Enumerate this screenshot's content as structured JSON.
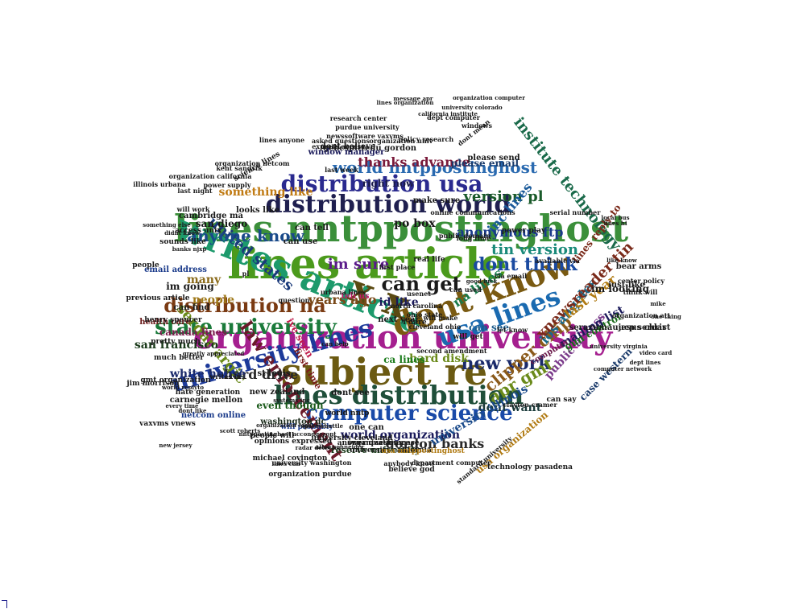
{
  "words": [
    {
      "text": "lines article",
      "color": "#4b9a1c"
    },
    {
      "text": "organization university",
      "color": "#a51f8f"
    },
    {
      "text": "lines nntppostinghost",
      "color": "#3b8f3a"
    },
    {
      "text": "writes article",
      "color": "#1d9a6c"
    },
    {
      "text": "subject re",
      "color": "#6b5a12"
    },
    {
      "text": "distribution world",
      "color": "#1f1f4f"
    },
    {
      "text": "x x",
      "color": "#5a4a12"
    },
    {
      "text": "dont know",
      "color": "#7a5a12"
    },
    {
      "text": "distribution usa",
      "color": "#2a2a8f"
    },
    {
      "text": "usa lines",
      "color": "#1a6ab0"
    },
    {
      "text": "lines distribution",
      "color": "#1f4f3a"
    },
    {
      "text": "university lines",
      "color": "#1d3a9a"
    },
    {
      "text": "state university",
      "color": "#1a7a3a"
    },
    {
      "text": "computer science",
      "color": "#1a4aa8"
    },
    {
      "text": "law enforcement",
      "color": "#6b1a2a"
    },
    {
      "text": "can get",
      "color": "#1a1a1a"
    },
    {
      "text": "new york",
      "color": "#1a2a6a"
    },
    {
      "text": "dont think",
      "color": "#1a4aa0"
    },
    {
      "text": "distribution na",
      "color": "#7a3a12"
    },
    {
      "text": "world nntppostinghost",
      "color": "#2a6ab0"
    },
    {
      "text": "apr gmt",
      "color": "#6a8a1a"
    },
    {
      "text": "clipper chip",
      "color": "#8a5a1a"
    },
    {
      "text": "los angeles",
      "color": "#1a6a8a"
    },
    {
      "text": "united states",
      "color": "#1a3a7a"
    },
    {
      "text": "anyone know",
      "color": "#1a4a8a"
    },
    {
      "text": "im sure",
      "color": "#5a1a8a"
    },
    {
      "text": "tin version",
      "color": "#1a8a7a"
    },
    {
      "text": "xnewsreader tin",
      "color": "#7a2a1a"
    },
    {
      "text": "version pl",
      "color": "#1a5a2a"
    },
    {
      "text": "serdar argic",
      "color": "#6a8a1a"
    },
    {
      "text": "inc lines",
      "color": "#1a5a9a"
    },
    {
      "text": "last year",
      "color": "#b07a12"
    },
    {
      "text": "gordon banks",
      "color": "#2a2a2a"
    },
    {
      "text": "thanks advance",
      "color": "#7a1a3a"
    },
    {
      "text": "anonymous ftp",
      "color": "#1a3a8a"
    },
    {
      "text": "hard drive",
      "color": "#2a2a2a"
    },
    {
      "text": "years ago",
      "color": "#7a4a1a"
    },
    {
      "text": "institute technology",
      "color": "#1a6a4a"
    },
    {
      "text": "na lines",
      "color": "#1a7a4a"
    },
    {
      "text": "san francisco",
      "color": "#1a3a1a"
    },
    {
      "text": "world organization",
      "color": "#1a1a5a"
    },
    {
      "text": "public access",
      "color": "#7a3a8a"
    },
    {
      "text": "dont want",
      "color": "#1a3a3a"
    },
    {
      "text": "mailing list",
      "color": "#1a1a5a"
    },
    {
      "text": "white house",
      "color": "#1a2a6a"
    },
    {
      "text": "something like",
      "color": "#c07a12"
    },
    {
      "text": "po box",
      "color": "#1a1a1a"
    },
    {
      "text": "can see",
      "color": "#1a5a8a"
    },
    {
      "text": "gun control",
      "color": "#1a6a1a"
    },
    {
      "text": "case western",
      "color": "#1a3a6a"
    },
    {
      "text": "canada lines",
      "color": "#7a1a4a"
    },
    {
      "text": "reserve university",
      "color": "#1a3a1a"
    },
    {
      "text": "hard disk",
      "color": "#6a8a1a"
    },
    {
      "text": "id like",
      "color": "#1a1a5a"
    },
    {
      "text": "right now",
      "color": "#1a1a4a"
    },
    {
      "text": "university illinois",
      "color": "#1a4a8a"
    },
    {
      "text": "lines reply-to",
      "color": "#7a2a1a"
    },
    {
      "text": "im going",
      "color": "#1a1a1a"
    },
    {
      "text": "im looking",
      "color": "#1a1a1a"
    },
    {
      "text": "people",
      "color": "#a07a1a"
    },
    {
      "text": "many",
      "color": "#8a6a1a"
    },
    {
      "text": "even though",
      "color": "#1a5a1a"
    },
    {
      "text": "usa organization",
      "color": "#b07a12"
    },
    {
      "text": "dont believe",
      "color": "#1a1a1a"
    },
    {
      "text": "please email",
      "color": "#1a3a6a"
    },
    {
      "text": "ca lines",
      "color": "#1a7a1a"
    },
    {
      "text": "just like",
      "color": "#1a1a1a"
    },
    {
      "text": "serazumauucp serdar",
      "color": "#1a1a1a"
    },
    {
      "text": "washington dc",
      "color": "#1a2a1a"
    },
    {
      "text": "san diego",
      "color": "#1a1a1a"
    },
    {
      "text": "computer",
      "color": "#6a1a4a"
    },
    {
      "text": "can find",
      "color": "#1a1a1a"
    },
    {
      "text": "please send",
      "color": "#1a1a1a"
    },
    {
      "text": "health care",
      "color": "#6a1a1a"
    },
    {
      "text": "make sure",
      "color": "#1a1a1a"
    },
    {
      "text": "gebcspittedu gordon",
      "color": "#1a1a1a"
    },
    {
      "text": "window manager",
      "color": "#1a1a5a"
    },
    {
      "text": "dont see",
      "color": "#1a1a1a"
    },
    {
      "text": "can use",
      "color": "#1a1a1a"
    },
    {
      "text": "can tell",
      "color": "#1a1a1a"
    },
    {
      "text": "one can",
      "color": "#1a1a1a"
    },
    {
      "text": "email address",
      "color": "#1a3a8a"
    },
    {
      "text": "looks like",
      "color": "#1a1a1a"
    },
    {
      "text": "cambridge ma",
      "color": "#1a1a1a"
    },
    {
      "text": "first time",
      "color": "#7a1a1a"
    },
    {
      "text": "ive seen",
      "color": "#c01a4a"
    },
    {
      "text": "st louis",
      "color": "#1a1a1a"
    },
    {
      "text": "new zealand",
      "color": "#1a1a1a"
    },
    {
      "text": "carnegie mellon",
      "color": "#1a1a1a"
    },
    {
      "text": "netcom online",
      "color": "#1a3a8a"
    },
    {
      "text": "previous article",
      "color": "#1a1a1a"
    },
    {
      "text": "henry spencer",
      "color": "#1a1a1a"
    },
    {
      "text": "pretty much",
      "color": "#1a1a1a"
    },
    {
      "text": "much better",
      "color": "#1a1a1a"
    },
    {
      "text": "access unix",
      "color": "#1a1a1a"
    },
    {
      "text": "sounds like",
      "color": "#1a1a1a"
    },
    {
      "text": "people will",
      "color": "#1a1a1a"
    },
    {
      "text": "will probably",
      "color": "#1a3a8a"
    },
    {
      "text": "opinions expressed",
      "color": "#1a1a1a"
    },
    {
      "text": "university cleveland",
      "color": "#1a1a1a"
    },
    {
      "text": "answer question",
      "color": "#1a1a1a"
    },
    {
      "text": "organization case",
      "color": "#1a1a1a"
    },
    {
      "text": "university california",
      "color": "#1a1a1a"
    },
    {
      "text": "usa nntppostinghost",
      "color": "#b07a12"
    },
    {
      "text": "michael covington",
      "color": "#1a1a1a"
    },
    {
      "text": "organization purdue",
      "color": "#1a1a1a"
    },
    {
      "text": "believe god",
      "color": "#1a1a1a"
    },
    {
      "text": "anybody know",
      "color": "#1a1a1a"
    },
    {
      "text": "department computer",
      "color": "#1a1a1a"
    },
    {
      "text": "technology pasadena",
      "color": "#1a1a1a"
    },
    {
      "text": "university washington",
      "color": "#1a1a1a"
    },
    {
      "text": "newssoftware vaxvms",
      "color": "#1a1a1a"
    },
    {
      "text": "policy research",
      "color": "#1a1a1a"
    },
    {
      "text": "purdue university",
      "color": "#1a1a1a"
    },
    {
      "text": "jesus christ",
      "color": "#1a1a1a"
    },
    {
      "text": "bear arms",
      "color": "#1a1a1a"
    },
    {
      "text": "serial number",
      "color": "#1a1a1a"
    },
    {
      "text": "power play",
      "color": "#1a1a1a"
    },
    {
      "text": "organization att",
      "color": "#1a1a1a"
    },
    {
      "text": "center policy",
      "color": "#1a1a1a"
    },
    {
      "text": "let know",
      "color": "#1a1a1a"
    },
    {
      "text": "via email",
      "color": "#1a1a1a"
    },
    {
      "text": "can help",
      "color": "#1a1a1a"
    },
    {
      "text": "good luck",
      "color": "#1a1a1a"
    },
    {
      "text": "tell us",
      "color": "#c01a6a"
    },
    {
      "text": "i dare",
      "color": "#1a1a1a"
    },
    {
      "text": "next year",
      "color": "#1a1a1a"
    },
    {
      "text": "urbana lines",
      "color": "#1a1a1a"
    },
    {
      "text": "vaxvms vnews",
      "color": "#1a1a1a"
    },
    {
      "text": "gmt organization",
      "color": "#1a1a1a"
    },
    {
      "text": "hate generation",
      "color": "#1a1a1a"
    },
    {
      "text": "jim morrison",
      "color": "#1a1a1a"
    },
    {
      "text": "every time",
      "color": "#1a1a1a"
    },
    {
      "text": "can say",
      "color": "#1a1a1a"
    },
    {
      "text": "will get",
      "color": "#1a1a1a"
    },
    {
      "text": "ohio state",
      "color": "#1a1a1a"
    },
    {
      "text": "real life",
      "color": "#1a1a1a"
    },
    {
      "text": "usenet",
      "color": "#1a1a1a"
    },
    {
      "text": "will make",
      "color": "#1a1a1a"
    },
    {
      "text": "organization univ",
      "color": "#1a1a1a"
    },
    {
      "text": "asked questions",
      "color": "#1a1a1a"
    },
    {
      "text": "research center",
      "color": "#1a1a1a"
    },
    {
      "text": "california institute",
      "color": "#1a1a1a"
    },
    {
      "text": "university colorado",
      "color": "#1a1a1a"
    },
    {
      "text": "dept computer",
      "color": "#1a1a1a"
    },
    {
      "text": "windows",
      "color": "#1a1a1a"
    },
    {
      "text": "space shuttle",
      "color": "#1a1a1a"
    },
    {
      "text": "radar detector",
      "color": "#1a1a1a"
    },
    {
      "text": "allan schneider",
      "color": "#1a1a1a"
    },
    {
      "text": "world nntp",
      "color": "#1a1a1a"
    },
    {
      "text": "pl",
      "color": "#1a1a1a"
    },
    {
      "text": "people",
      "color": "#1a1a1a"
    },
    {
      "text": "will work",
      "color": "#1a1a1a"
    },
    {
      "text": "last night",
      "color": "#1a1a1a"
    },
    {
      "text": "illinois urbana",
      "color": "#1a1a1a"
    },
    {
      "text": "organization california",
      "color": "#1a1a1a"
    },
    {
      "text": "power supply",
      "color": "#1a1a1a"
    },
    {
      "text": "kent sandvik",
      "color": "#1a1a1a"
    },
    {
      "text": "lines anyone",
      "color": "#1a1a1a"
    },
    {
      "text": "organization netcom",
      "color": "#1a1a1a"
    },
    {
      "text": "online communications",
      "color": "#1a1a1a"
    },
    {
      "text": "north carolina",
      "color": "#1a1a1a"
    },
    {
      "text": "can used",
      "color": "#1a1a1a"
    },
    {
      "text": "local bus",
      "color": "#1a1a1a"
    },
    {
      "text": "think will",
      "color": "#1a1a1a"
    },
    {
      "text": "video card",
      "color": "#1a1a1a"
    },
    {
      "text": "dept lines",
      "color": "#1a1a1a"
    },
    {
      "text": "university virginia",
      "color": "#1a1a1a"
    },
    {
      "text": "computer network",
      "color": "#1a1a1a"
    },
    {
      "text": "available via",
      "color": "#1a1a1a"
    },
    {
      "text": "public domain",
      "color": "#1a1a1a"
    },
    {
      "text": "science lines",
      "color": "#1a1a1a"
    },
    {
      "text": "express access",
      "color": "#1a1a1a"
    },
    {
      "text": "last week",
      "color": "#1a1a1a"
    },
    {
      "text": "question",
      "color": "#1a1a1a"
    },
    {
      "text": "lines hi",
      "color": "#1a1a1a"
    },
    {
      "text": "one thing",
      "color": "#1a1a1a"
    },
    {
      "text": "mike",
      "color": "#1a1a1a"
    },
    {
      "text": "like know",
      "color": "#1a1a1a"
    },
    {
      "text": "dont mean",
      "color": "#1a1a1a"
    },
    {
      "text": "first place",
      "color": "#1a1a1a"
    },
    {
      "text": "long time",
      "color": "#1a1a1a"
    },
    {
      "text": "cleveland ohio",
      "color": "#1a1a1a"
    },
    {
      "text": "clayton cramer",
      "color": "#1a1a1a"
    },
    {
      "text": "standard university",
      "color": "#1a1a1a"
    },
    {
      "text": "second amendment",
      "color": "#1a1a1a"
    },
    {
      "text": "lines can",
      "color": "#1a1a1a"
    },
    {
      "text": "writes in",
      "color": "#1a1a1a"
    },
    {
      "text": "dont like",
      "color": "#1a1a1a"
    },
    {
      "text": "organization computer",
      "color": "#1a1a1a"
    },
    {
      "text": "message apr",
      "color": "#1a1a1a"
    },
    {
      "text": "lines organization",
      "color": "#1a1a1a"
    },
    {
      "text": "new jersey",
      "color": "#1a1a1a"
    },
    {
      "text": "world replyto",
      "color": "#1a1a1a"
    },
    {
      "text": "systems inc",
      "color": "#1a1a1a"
    },
    {
      "text": "nntppostinghost accondgezont",
      "color": "#1a1a1a"
    },
    {
      "text": "organization express",
      "color": "#1a1a1a"
    },
    {
      "text": "scott roberts",
      "color": "#1a1a1a"
    },
    {
      "text": "greatly appreciated",
      "color": "#1a1a1a"
    },
    {
      "text": "something else",
      "color": "#1a1a1a"
    },
    {
      "text": "didnt know",
      "color": "#1a1a1a"
    },
    {
      "text": "banks njxp",
      "color": "#1a1a1a"
    },
    {
      "text": "surrender soon",
      "color": "#1a1a1a"
    },
    {
      "text": "pitt shameful",
      "color": "#1a1a1a"
    },
    {
      "text": "computer science department",
      "color": "#1a1a1a"
    },
    {
      "text": "orga",
      "color": "#1a1a1a"
    },
    {
      "text": "software",
      "color": "#1a1a1a"
    },
    {
      "text": "last",
      "color": "#1a1a1a"
    }
  ]
}
